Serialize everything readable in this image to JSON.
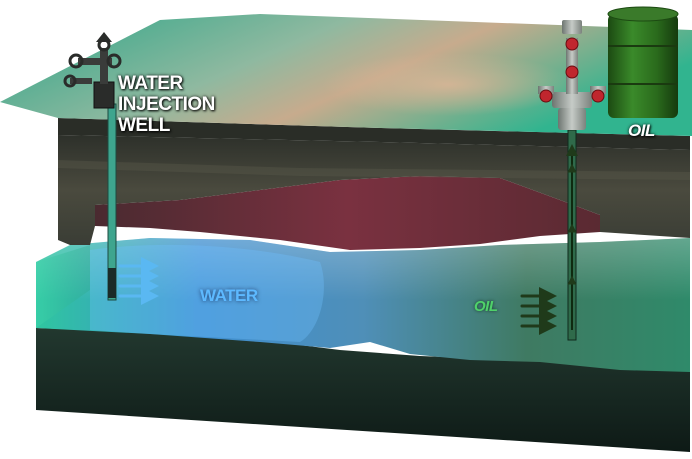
{
  "labels": {
    "water_injection_well": [
      "WATER",
      "INJECTION",
      "WELL"
    ],
    "oil_barrel": "OIL",
    "water_zone": "WATER",
    "oil_zone": "OIL"
  },
  "colors": {
    "surface": "#2fb58f",
    "surface_sand": "#c9a98a",
    "overburden": "#3e4038",
    "shale_band": "#6a2e3a",
    "water_zone": "#3f86c9",
    "reservoir": "#2f6a5a",
    "base_rock": "#233a32",
    "arrow_water": "#4aa8e8",
    "arrow_oil": "#2e9a3a",
    "barrel": "#2d6a1f"
  },
  "icons": {
    "injection_wellhead": "wellhead-valve-icon",
    "production_wellhead": "christmas-tree-icon",
    "storage": "oil-barrel-icon",
    "flow": "flow-arrow-icon"
  }
}
